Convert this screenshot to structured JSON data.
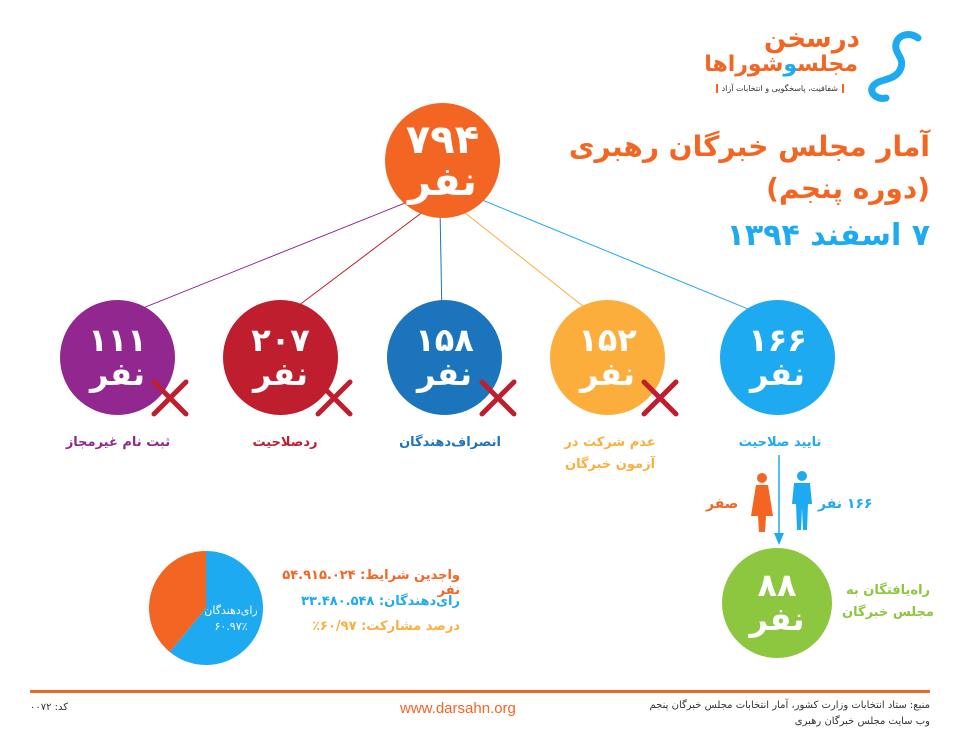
{
  "logo": {
    "brand": "درسخن",
    "name_part1": "مجلس",
    "name_part2": "و",
    "name_part3": "شوراها",
    "tagline": "شفافیت، پاسخگویی و انتخابات آزاد"
  },
  "title": {
    "line1": "آمار مجلس خبرگان رهبری",
    "line2": "(دوره پنجم)",
    "line3": "۷ اسفند ۱۳۹۴"
  },
  "top_node": {
    "number": "۷۹۴",
    "unit": "نفر",
    "color": "#f26522"
  },
  "nodes": [
    {
      "number": "۱۶۶",
      "unit": "نفر",
      "label": "تایید صلاحیت",
      "color": "#1eaaf1",
      "rejected": false
    },
    {
      "number": "۱۵۲",
      "unit": "نفر",
      "label": "عدم شرکت در\nآزمون خبرگان",
      "color": "#fbae3c",
      "rejected": true
    },
    {
      "number": "۱۵۸",
      "unit": "نفر",
      "label": "انصراف‌دهندگان",
      "color": "#1c75bc",
      "rejected": true
    },
    {
      "number": "۲۰۷",
      "unit": "نفر",
      "label": "ردصلاحیت",
      "color": "#be1e2d",
      "rejected": true
    },
    {
      "number": "۱۱۱",
      "unit": "نفر",
      "label": "ثبت نام غیرمجاز",
      "color": "#92278f",
      "rejected": true
    }
  ],
  "gender": {
    "male_label": "۱۶۶ نفر",
    "female_label": "صفر",
    "male_color": "#1eaaf1",
    "female_color": "#f26522"
  },
  "result_node": {
    "number": "۸۸",
    "unit": "نفر",
    "label": "راه‌یافتگان به\nمجلس خبرگان",
    "color": "#8dc63f"
  },
  "pie": {
    "inner_label": "رای‌دهندگان",
    "inner_value": "۶۰.۹۷٪",
    "voter_fraction": 0.6097,
    "voter_color": "#1eaaf1",
    "rest_color": "#f26522"
  },
  "stats": {
    "eligible": "واجدین شرایط: ۵۴.۹۱۵.۰۲۴ نفر",
    "voters": "رای‌دهندگان: ۳۳.۴۸۰.۵۴۸",
    "participation": "درصد مشارکت: ۶۰/۹۷٪",
    "eligible_color": "#f26522",
    "voters_color": "#1eaaf1",
    "participation_color": "#fbae3c"
  },
  "footer": {
    "source_line1": "منبع: ستاد انتخابات وزارت کشور، آمار انتخابات مجلس خبرگان پنجم",
    "source_line2": "وب سایت مجلس خبرگان رهبری",
    "website": "www.darsahn.org",
    "code": "کد: ۰۰۷۲"
  }
}
